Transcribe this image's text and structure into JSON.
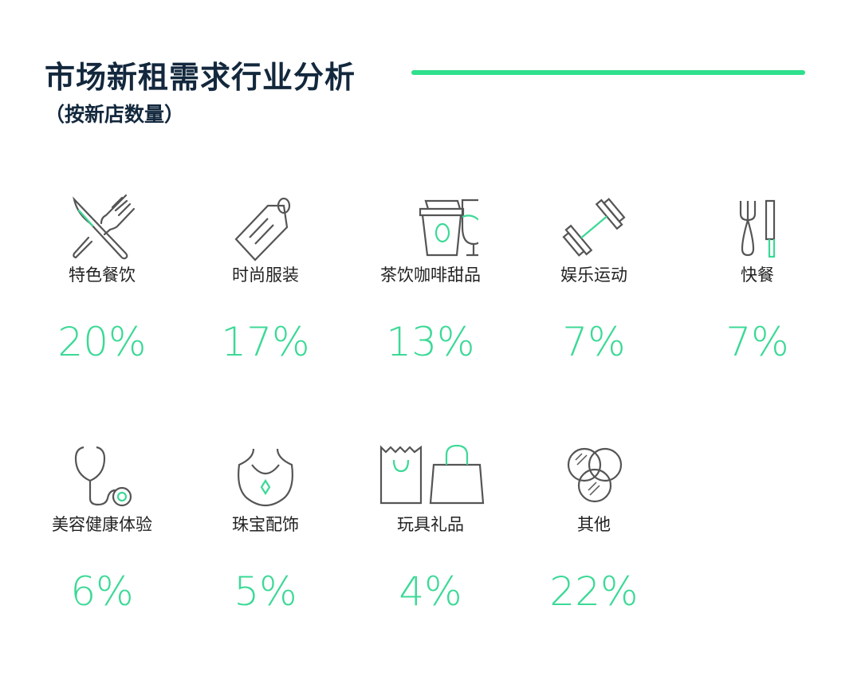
{
  "header": {
    "title": "市场新租需求行业分析",
    "subtitle": "（按新店数量）"
  },
  "colors": {
    "title": "#13283d",
    "accent": "#2fe08c",
    "value": "#3bd996",
    "icon_stroke": "#555555"
  },
  "items": [
    {
      "label": "特色餐饮",
      "value": "20%",
      "icon": "knife-fork-icon"
    },
    {
      "label": "时尚服装",
      "value": "17%",
      "icon": "price-tag-icon"
    },
    {
      "label": "茶饮咖啡甜品",
      "value": "13%",
      "icon": "coffee-cup-wine-glass-icon"
    },
    {
      "label": "娱乐运动",
      "value": "7%",
      "icon": "dumbbell-icon"
    },
    {
      "label": "快餐",
      "value": "7%",
      "icon": "fork-cleaver-icon"
    },
    {
      "label": "美容健康体验",
      "value": "6%",
      "icon": "stethoscope-icon"
    },
    {
      "label": "珠宝配饰",
      "value": "5%",
      "icon": "necklace-icon"
    },
    {
      "label": "玩具礼品",
      "value": "4%",
      "icon": "gift-bags-icon"
    },
    {
      "label": "其他",
      "value": "22%",
      "icon": "circles-icon"
    }
  ],
  "chart_data": {
    "type": "table",
    "title": "市场新租需求行业分析",
    "subtitle": "（按新店数量）",
    "categories": [
      "特色餐饮",
      "时尚服装",
      "茶饮咖啡甜品",
      "娱乐运动",
      "快餐",
      "美容健康体验",
      "珠宝配饰",
      "玩具礼品",
      "其他"
    ],
    "values": [
      20,
      17,
      13,
      7,
      7,
      6,
      5,
      4,
      22
    ],
    "unit": "%"
  }
}
